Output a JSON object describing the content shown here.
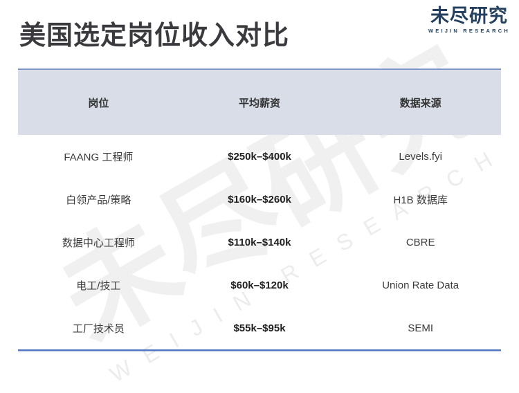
{
  "page": {
    "title": "美国选定岗位收入对比"
  },
  "logo": {
    "name_cn": "未尽研究",
    "name_en": "WEIJIN RESEARCH"
  },
  "watermark": {
    "text_cn": "未尽研究",
    "text_en": "WEIJIN RESEARCH"
  },
  "table": {
    "headers": {
      "position": "岗位",
      "salary": "平均薪资",
      "source": "数据来源"
    },
    "rows": [
      {
        "position": "FAANG 工程师",
        "salary": "$250k–$400k",
        "source": "Levels.fyi"
      },
      {
        "position": "白领产品/策略",
        "salary": "$160k–$260k",
        "source": "H1B 数据库"
      },
      {
        "position": "数据中心工程师",
        "salary": "$110k–$140k",
        "source": "CBRE"
      },
      {
        "position": "电工/技工",
        "salary": "$60k–$120k",
        "source": "Union Rate Data"
      },
      {
        "position": "工厂技术员",
        "salary": "$55k–$95k",
        "source": "SEMI"
      }
    ]
  },
  "colors": {
    "header_bg": "#d8dde7",
    "table_border_top": "#7e96c8",
    "table_border_bottom": "#4f74c0",
    "title_text": "#3a3a3e",
    "logo_navy": "#24405e"
  }
}
